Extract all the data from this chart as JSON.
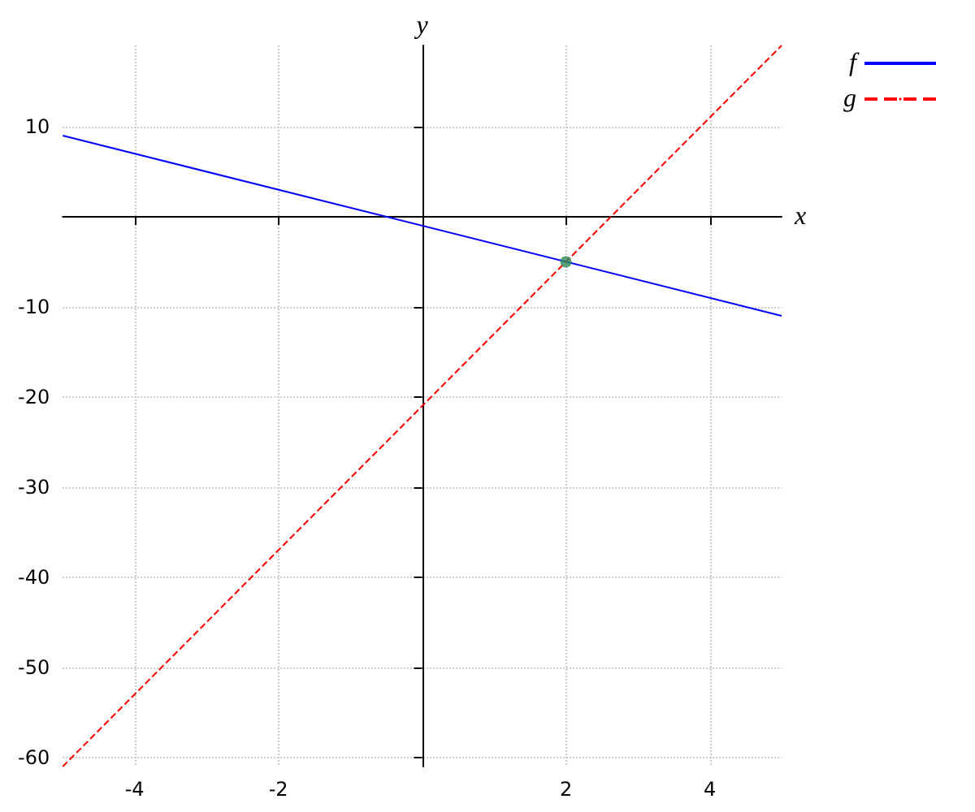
{
  "chart_data": {
    "type": "line",
    "xlabel": "x",
    "ylabel": "y",
    "xlim": [
      -5,
      5
    ],
    "ylim": [
      -61,
      19
    ],
    "xticks": [
      -4,
      -2,
      2,
      4
    ],
    "yticks": [
      -60,
      -50,
      -40,
      -30,
      -20,
      -10,
      10
    ],
    "grid": true,
    "legend": "top right",
    "marker": "none",
    "series": [
      {
        "name": "f",
        "color": "#0000ff",
        "x": [
          -5,
          5
        ],
        "values": [
          9,
          -11
        ],
        "line_style": "solid"
      },
      {
        "name": "g",
        "color": "#ff0000",
        "x": [
          -5,
          5
        ],
        "values": [
          -61,
          19
        ],
        "line_style": "dashed"
      },
      {
        "type": "scatter",
        "color": "#2e8b57",
        "x": [
          2
        ],
        "values": [
          -5
        ],
        "marker": "circle"
      }
    ]
  }
}
